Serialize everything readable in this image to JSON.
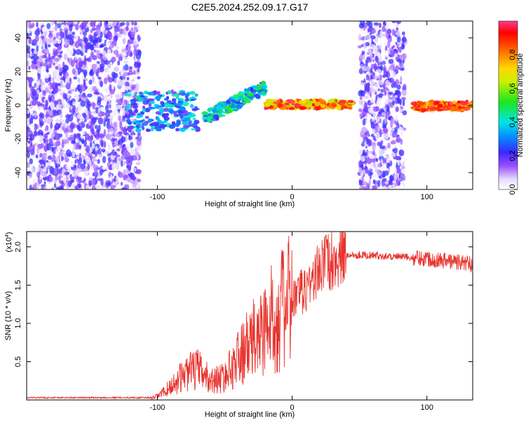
{
  "title": "C2E5.2024.252.09.17.G17",
  "chart_data": [
    {
      "type": "heatmap",
      "xlabel": "Height of straight line (km)",
      "ylabel": "Frequency (Hz)",
      "xlim": [
        -197,
        134
      ],
      "ylim": [
        -50,
        50
      ],
      "xticks": [
        -100,
        0,
        100
      ],
      "yticks": [
        -40,
        -20,
        0,
        20,
        40
      ],
      "colorbar": {
        "label": "Normalized spectral amplitude",
        "range": [
          0,
          1
        ],
        "ticks": [
          "0.0",
          "0.2",
          "0.4",
          "0.6",
          "0.8"
        ]
      },
      "regions": [
        {
          "x": [
            -197,
            -113
          ],
          "freq": [
            -50,
            50
          ],
          "amplitude": [
            0.0,
            0.25
          ],
          "kind": "broadband noise"
        },
        {
          "x": [
            -122,
            -70
          ],
          "freq": [
            -15,
            8
          ],
          "amplitude": [
            0.15,
            0.45
          ],
          "kind": "scattered signal"
        },
        {
          "x": [
            -65,
            -20
          ],
          "freq": [
            -12,
            15
          ],
          "amplitude": [
            0.2,
            0.55
          ],
          "kind": "chirped traces"
        },
        {
          "x": [
            -20,
            45
          ],
          "freq": [
            -2,
            3
          ],
          "amplitude": [
            0.6,
            1.0
          ],
          "kind": "narrowband carrier"
        },
        {
          "x": [
            50,
            84
          ],
          "freq": [
            -50,
            50
          ],
          "amplitude": [
            0.0,
            0.25
          ],
          "kind": "broadband noise"
        },
        {
          "x": [
            90,
            134
          ],
          "freq": [
            -3,
            2
          ],
          "amplitude": [
            0.7,
            1.0
          ],
          "kind": "narrowband carrier"
        }
      ]
    },
    {
      "type": "line",
      "xlabel": "Height of straight line (km)",
      "ylabel": "SNR (10 * v/v)",
      "yscale_label": "(x10",
      "yscale_exp": "4",
      "xlim": [
        -197,
        134
      ],
      "ylim": [
        0,
        2.2
      ],
      "xticks": [
        -100,
        0,
        100
      ],
      "yticks": [
        "0.5",
        "1.0",
        "1.5",
        "2.0"
      ],
      "color": "#e8342e",
      "trend": [
        {
          "x": -197,
          "y": 0.02
        },
        {
          "x": -105,
          "y": 0.02
        },
        {
          "x": -100,
          "y": 0.05
        },
        {
          "x": -94,
          "y": 0.12
        },
        {
          "x": -85,
          "y": 0.25
        },
        {
          "x": -80,
          "y": 0.35
        },
        {
          "x": -70,
          "y": 0.4
        },
        {
          "x": -60,
          "y": 0.25
        },
        {
          "x": -50,
          "y": 0.3
        },
        {
          "x": -40,
          "y": 0.55
        },
        {
          "x": -30,
          "y": 0.75
        },
        {
          "x": -20,
          "y": 0.95
        },
        {
          "x": -10,
          "y": 1.15
        },
        {
          "x": 0,
          "y": 1.3
        },
        {
          "x": 10,
          "y": 1.45
        },
        {
          "x": 20,
          "y": 1.7
        },
        {
          "x": 30,
          "y": 1.85
        },
        {
          "x": 45,
          "y": 1.9
        },
        {
          "x": 70,
          "y": 1.88
        },
        {
          "x": 100,
          "y": 1.85
        },
        {
          "x": 134,
          "y": 1.78
        }
      ],
      "peak": {
        "x": 25,
        "y": 2.15
      }
    }
  ]
}
